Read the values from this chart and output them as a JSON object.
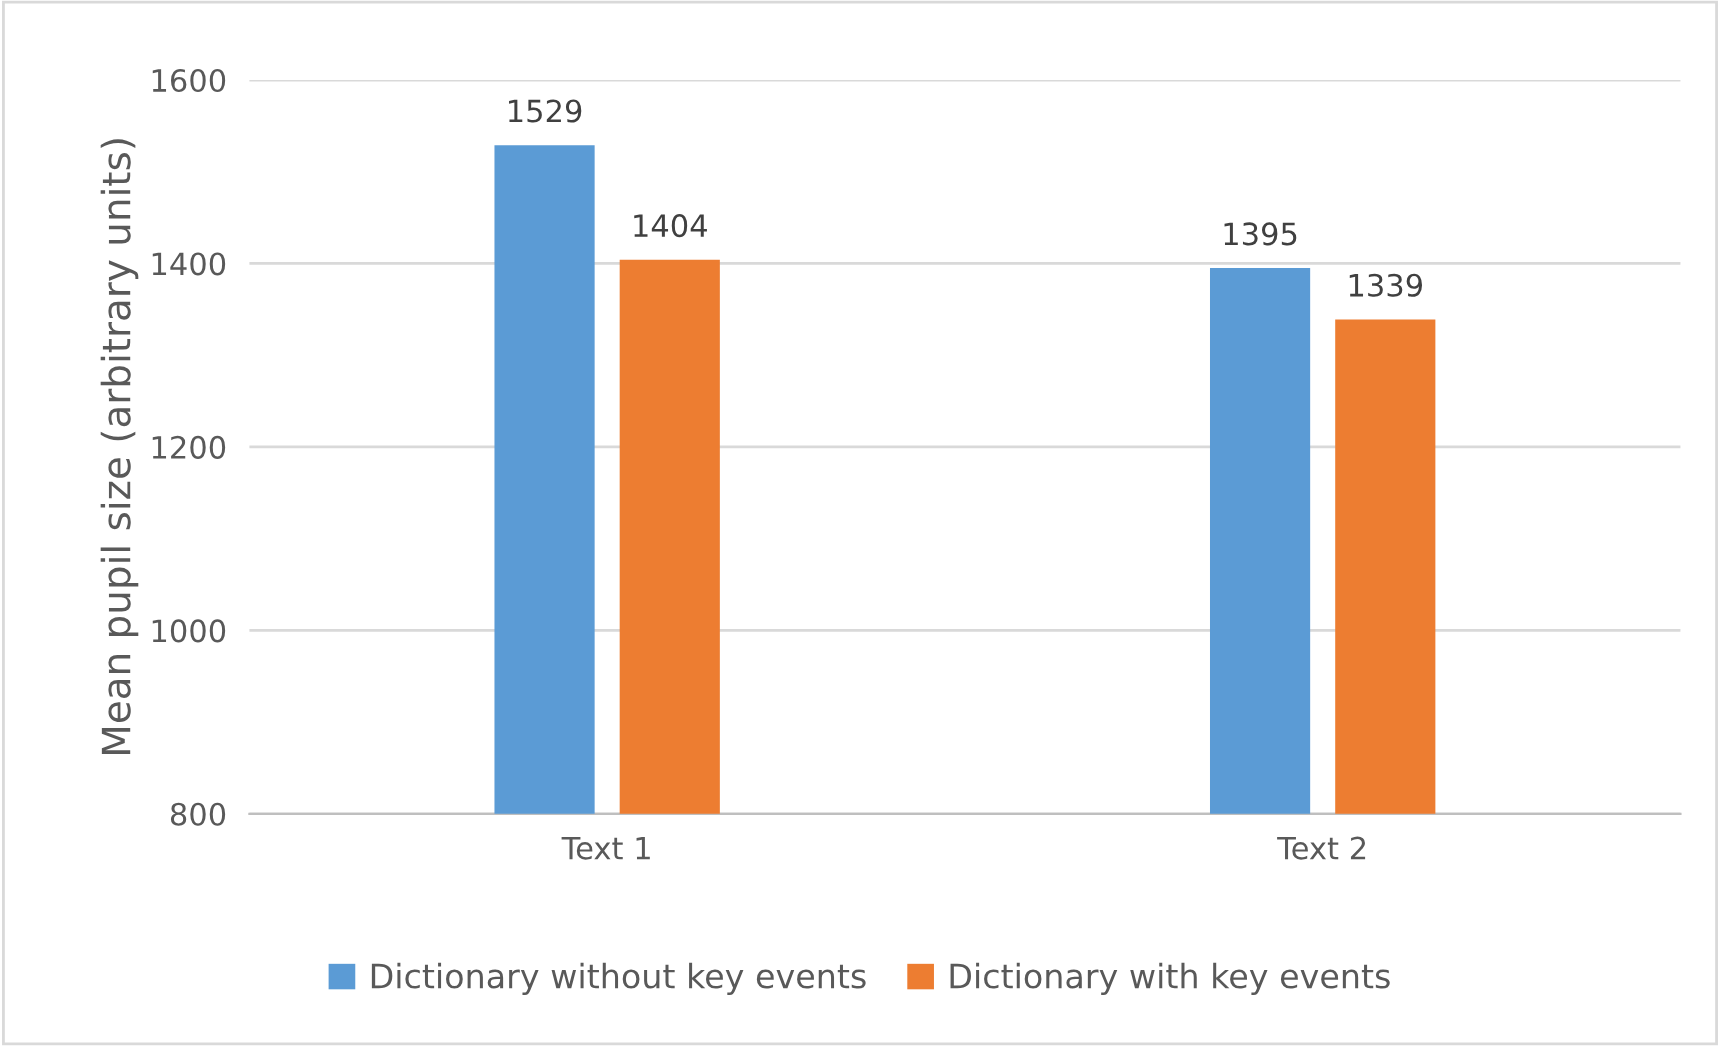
{
  "chart_data": {
    "type": "bar",
    "ylabel": "Mean pupil size (arbitrary units)",
    "categories": [
      "Text 1",
      "Text 2"
    ],
    "series": [
      {
        "name": "Dictionary without key events",
        "color": "#5b9bd5",
        "values": [
          1529,
          1395
        ]
      },
      {
        "name": "Dictionary with key events",
        "color": "#ed7d31",
        "values": [
          1404,
          1339
        ]
      }
    ],
    "ylim": [
      800,
      1600
    ],
    "yticks": [
      800,
      1000,
      1200,
      1400,
      1600
    ],
    "grid": "y",
    "data_labels": true,
    "legend": "bottom"
  }
}
